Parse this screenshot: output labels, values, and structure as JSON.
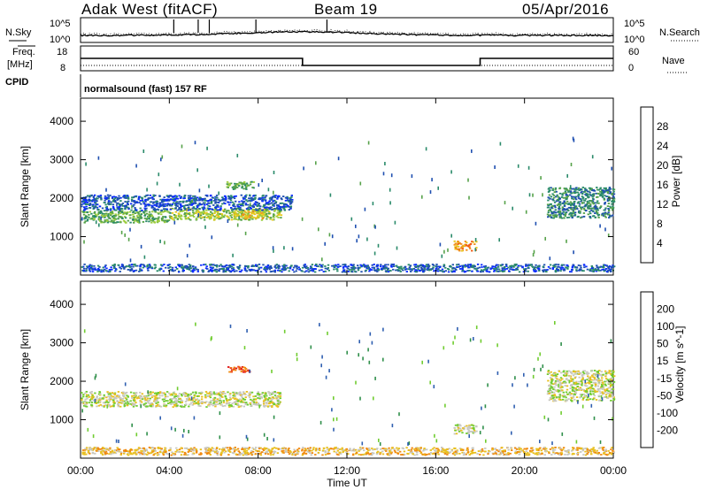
{
  "header": {
    "radar": "Adak West (fitACF)",
    "beam": "Beam 19",
    "date": "05/Apr/2016"
  },
  "status_panels": {
    "left_labels": [
      "N.Sky",
      "Freq.",
      "[MHz]",
      "CPID"
    ],
    "right_labels": [
      "N.Search",
      "Nave"
    ],
    "noise_axis": [
      "10^5",
      "10^0"
    ],
    "freq_axis": [
      "18",
      "8"
    ],
    "nave_axis": [
      "60",
      "0"
    ],
    "cpid_text": "normalsound (fast) 157 RF"
  },
  "colors": {
    "power": [
      "#0a2bff",
      "#1f4fb0",
      "#2a8a6a",
      "#56a24a",
      "#9ccc3c",
      "#e8c81c",
      "#f0901a",
      "#f05a10",
      "#e61e0a"
    ],
    "velocity": [
      "#1a1aa0",
      "#2f5fb0",
      "#2f8f4a",
      "#70cc30",
      "#c8c8c0",
      "#e8c020",
      "#f08a10",
      "#f04a10",
      "#e01010"
    ],
    "gray_scatter": "#c8c8c0"
  },
  "chart_data": [
    {
      "type": "heatmap",
      "panel": "power",
      "ylabel": "Slant Range [km]",
      "colorbar_label": "Power [dB]",
      "colorbar_ticks": [
        4,
        8,
        12,
        16,
        20,
        24,
        28
      ],
      "x_ticks": [
        "00:00",
        "04:00",
        "08:00",
        "12:00",
        "16:00",
        "20:00",
        "00:00"
      ],
      "ylim": [
        0,
        4600
      ],
      "y_ticks": [
        1000,
        2000,
        3000,
        4000
      ],
      "xlim_hours": [
        0,
        24
      ],
      "bands": [
        {
          "t0": 0.0,
          "t1": 4.0,
          "r0": 1380,
          "r1": 1700,
          "level": 3
        },
        {
          "t0": 4.0,
          "t1": 9.0,
          "r0": 1450,
          "r1": 1750,
          "level": 4
        },
        {
          "t0": 6.8,
          "t1": 8.2,
          "r0": 1480,
          "r1": 1700,
          "level": 5
        },
        {
          "t0": 0.0,
          "t1": 9.5,
          "r0": 1700,
          "r1": 2100,
          "level": 1
        },
        {
          "t0": 6.5,
          "t1": 7.8,
          "r0": 2250,
          "r1": 2450,
          "level": 3
        },
        {
          "t0": 16.8,
          "t1": 17.8,
          "r0": 650,
          "r1": 900,
          "level": 6
        },
        {
          "t0": 21.0,
          "t1": 24.0,
          "r0": 1500,
          "r1": 2300,
          "level": 2
        },
        {
          "t0": 0.0,
          "t1": 24.0,
          "r0": 100,
          "r1": 300,
          "level": 1
        }
      ]
    },
    {
      "type": "heatmap",
      "panel": "velocity",
      "ylabel": "Slant Range [km]",
      "xlabel": "Time UT",
      "colorbar_label": "Velocity [m s^-1]",
      "colorbar_ticks": [
        200,
        100,
        50,
        15,
        -15,
        -50,
        -100,
        -200
      ],
      "x_ticks": [
        "00:00",
        "04:00",
        "08:00",
        "12:00",
        "16:00",
        "20:00",
        "00:00"
      ],
      "ylim": [
        0,
        4600
      ],
      "y_ticks": [
        1000,
        2000,
        3000,
        4000
      ],
      "xlim_hours": [
        0,
        24
      ],
      "bands": [
        {
          "t0": 0.0,
          "t1": 9.0,
          "r0": 1350,
          "r1": 1750,
          "level": 4
        },
        {
          "t0": 6.6,
          "t1": 7.6,
          "r0": 2250,
          "r1": 2400,
          "level": 7
        },
        {
          "t0": 16.8,
          "t1": 17.8,
          "r0": 650,
          "r1": 900,
          "level": 4
        },
        {
          "t0": 21.0,
          "t1": 24.0,
          "r0": 1500,
          "r1": 2300,
          "level": 4
        },
        {
          "t0": 0.0,
          "t1": 24.0,
          "r0": 100,
          "r1": 300,
          "level": 5
        }
      ]
    }
  ]
}
